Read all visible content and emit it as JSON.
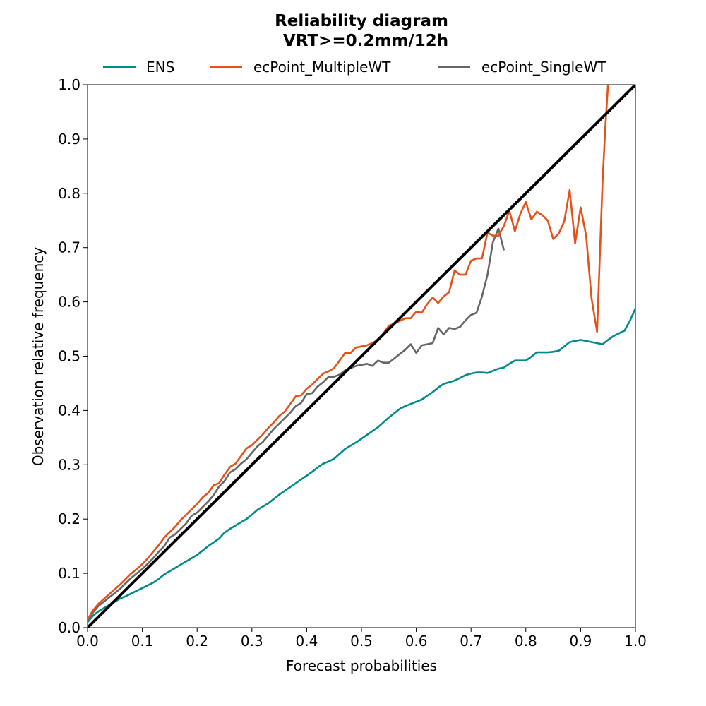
{
  "chart_data": {
    "type": "line",
    "title": "Reliability diagram",
    "subtitle": "VRT>=0.2mm/12h",
    "xlabel": "Forecast probabilities",
    "ylabel": "Observation relative frequency",
    "xlim": [
      0.0,
      1.0
    ],
    "ylim": [
      0.0,
      1.0
    ],
    "xticks": [
      "0.0",
      "0.1",
      "0.2",
      "0.3",
      "0.4",
      "0.5",
      "0.6",
      "0.7",
      "0.8",
      "0.9",
      "1.0"
    ],
    "yticks": [
      "0.0",
      "0.1",
      "0.2",
      "0.3",
      "0.4",
      "0.5",
      "0.6",
      "0.7",
      "0.8",
      "0.9",
      "1.0"
    ],
    "grid": false,
    "legend_position": "top",
    "series": [
      {
        "name": "ENS",
        "color": "#008b8b",
        "x": [
          0.0,
          0.01,
          0.02,
          0.03,
          0.04,
          0.05,
          0.06,
          0.07,
          0.08,
          0.09,
          0.1,
          0.11,
          0.12,
          0.13,
          0.14,
          0.15,
          0.16,
          0.17,
          0.18,
          0.19,
          0.2,
          0.21,
          0.22,
          0.23,
          0.24,
          0.25,
          0.26,
          0.27,
          0.28,
          0.29,
          0.3,
          0.31,
          0.32,
          0.33,
          0.34,
          0.35,
          0.36,
          0.37,
          0.38,
          0.39,
          0.4,
          0.41,
          0.42,
          0.43,
          0.44,
          0.45,
          0.46,
          0.47,
          0.48,
          0.49,
          0.5,
          0.51,
          0.52,
          0.53,
          0.54,
          0.55,
          0.56,
          0.57,
          0.58,
          0.59,
          0.6,
          0.61,
          0.62,
          0.63,
          0.64,
          0.65,
          0.66,
          0.67,
          0.68,
          0.69,
          0.7,
          0.71,
          0.72,
          0.73,
          0.74,
          0.75,
          0.76,
          0.77,
          0.78,
          0.79,
          0.8,
          0.81,
          0.82,
          0.83,
          0.84,
          0.85,
          0.86,
          0.87,
          0.88,
          0.89,
          0.9,
          0.91,
          0.92,
          0.93,
          0.94,
          0.95,
          0.96,
          0.97,
          0.98,
          0.99,
          1.0
        ],
        "y": [
          0.01,
          0.022,
          0.03,
          0.036,
          0.042,
          0.048,
          0.054,
          0.058,
          0.063,
          0.068,
          0.073,
          0.078,
          0.083,
          0.09,
          0.098,
          0.104,
          0.11,
          0.116,
          0.122,
          0.128,
          0.134,
          0.142,
          0.15,
          0.157,
          0.164,
          0.175,
          0.182,
          0.188,
          0.194,
          0.2,
          0.208,
          0.217,
          0.223,
          0.229,
          0.237,
          0.245,
          0.252,
          0.259,
          0.266,
          0.273,
          0.28,
          0.287,
          0.295,
          0.302,
          0.306,
          0.311,
          0.32,
          0.329,
          0.335,
          0.341,
          0.348,
          0.355,
          0.362,
          0.369,
          0.378,
          0.387,
          0.395,
          0.403,
          0.408,
          0.412,
          0.416,
          0.42,
          0.427,
          0.434,
          0.442,
          0.449,
          0.452,
          0.455,
          0.46,
          0.465,
          0.468,
          0.47,
          0.47,
          0.469,
          0.473,
          0.477,
          0.479,
          0.486,
          0.492,
          0.492,
          0.492,
          0.499,
          0.507,
          0.507,
          0.507,
          0.508,
          0.51,
          0.518,
          0.526,
          0.528,
          0.53,
          0.528,
          0.526,
          0.524,
          0.522,
          0.53,
          0.537,
          0.542,
          0.547,
          0.565,
          0.588
        ]
      },
      {
        "name": "ecPoint_MultipleWT",
        "color": "#e8501a",
        "x": [
          0.0,
          0.01,
          0.02,
          0.03,
          0.04,
          0.05,
          0.06,
          0.07,
          0.08,
          0.09,
          0.1,
          0.11,
          0.12,
          0.13,
          0.14,
          0.15,
          0.16,
          0.17,
          0.18,
          0.19,
          0.2,
          0.21,
          0.22,
          0.23,
          0.24,
          0.25,
          0.26,
          0.27,
          0.28,
          0.29,
          0.3,
          0.31,
          0.32,
          0.33,
          0.34,
          0.35,
          0.36,
          0.37,
          0.38,
          0.39,
          0.4,
          0.41,
          0.42,
          0.43,
          0.44,
          0.45,
          0.46,
          0.47,
          0.48,
          0.49,
          0.5,
          0.51,
          0.52,
          0.53,
          0.54,
          0.55,
          0.56,
          0.57,
          0.58,
          0.59,
          0.6,
          0.61,
          0.62,
          0.63,
          0.64,
          0.65,
          0.66,
          0.67,
          0.68,
          0.69,
          0.7,
          0.71,
          0.72,
          0.73,
          0.74,
          0.75,
          0.76,
          0.77,
          0.78,
          0.79,
          0.8,
          0.81,
          0.82,
          0.83,
          0.84,
          0.85,
          0.86,
          0.87,
          0.88,
          0.89,
          0.9,
          0.91,
          0.92,
          0.93,
          0.94,
          0.945,
          0.95
        ],
        "y": [
          0.015,
          0.032,
          0.044,
          0.053,
          0.062,
          0.071,
          0.08,
          0.09,
          0.1,
          0.108,
          0.117,
          0.128,
          0.14,
          0.152,
          0.166,
          0.176,
          0.186,
          0.198,
          0.208,
          0.218,
          0.228,
          0.24,
          0.248,
          0.262,
          0.266,
          0.282,
          0.296,
          0.302,
          0.316,
          0.33,
          0.336,
          0.346,
          0.356,
          0.368,
          0.378,
          0.39,
          0.398,
          0.412,
          0.426,
          0.428,
          0.44,
          0.448,
          0.458,
          0.468,
          0.472,
          0.478,
          0.492,
          0.506,
          0.506,
          0.516,
          0.518,
          0.52,
          0.524,
          0.53,
          0.542,
          0.556,
          0.56,
          0.565,
          0.57,
          0.57,
          0.582,
          0.58,
          0.596,
          0.608,
          0.598,
          0.61,
          0.618,
          0.658,
          0.65,
          0.65,
          0.676,
          0.68,
          0.68,
          0.728,
          0.722,
          0.722,
          0.74,
          0.768,
          0.73,
          0.762,
          0.784,
          0.752,
          0.766,
          0.76,
          0.75,
          0.716,
          0.726,
          0.748,
          0.806,
          0.708,
          0.774,
          0.722,
          0.606,
          0.545,
          0.82,
          0.92,
          1.0
        ]
      },
      {
        "name": "ecPoint_SingleWT",
        "color": "#666666",
        "x": [
          0.0,
          0.01,
          0.02,
          0.03,
          0.04,
          0.05,
          0.06,
          0.07,
          0.08,
          0.09,
          0.1,
          0.11,
          0.12,
          0.13,
          0.14,
          0.15,
          0.16,
          0.17,
          0.18,
          0.19,
          0.2,
          0.21,
          0.22,
          0.23,
          0.24,
          0.25,
          0.26,
          0.27,
          0.28,
          0.29,
          0.3,
          0.31,
          0.32,
          0.33,
          0.34,
          0.35,
          0.36,
          0.37,
          0.38,
          0.39,
          0.4,
          0.41,
          0.42,
          0.43,
          0.44,
          0.45,
          0.46,
          0.47,
          0.48,
          0.49,
          0.5,
          0.51,
          0.52,
          0.53,
          0.54,
          0.55,
          0.56,
          0.57,
          0.58,
          0.59,
          0.6,
          0.61,
          0.62,
          0.63,
          0.64,
          0.65,
          0.66,
          0.67,
          0.68,
          0.69,
          0.7,
          0.71,
          0.72,
          0.73,
          0.74,
          0.75,
          0.76
        ],
        "y": [
          0.012,
          0.028,
          0.04,
          0.048,
          0.056,
          0.064,
          0.072,
          0.082,
          0.092,
          0.1,
          0.108,
          0.118,
          0.128,
          0.14,
          0.15,
          0.166,
          0.172,
          0.182,
          0.192,
          0.206,
          0.212,
          0.222,
          0.232,
          0.244,
          0.26,
          0.27,
          0.286,
          0.292,
          0.302,
          0.31,
          0.322,
          0.334,
          0.342,
          0.354,
          0.366,
          0.376,
          0.386,
          0.396,
          0.408,
          0.414,
          0.43,
          0.432,
          0.444,
          0.452,
          0.462,
          0.462,
          0.466,
          0.474,
          0.478,
          0.482,
          0.484,
          0.486,
          0.482,
          0.492,
          0.488,
          0.488,
          0.496,
          0.504,
          0.512,
          0.522,
          0.506,
          0.52,
          0.522,
          0.524,
          0.552,
          0.54,
          0.552,
          0.55,
          0.554,
          0.566,
          0.576,
          0.58,
          0.61,
          0.65,
          0.71,
          0.735,
          0.695
        ]
      },
      {
        "name": "",
        "color": "#000000",
        "x": [
          0.0,
          1.0
        ],
        "y": [
          0.0,
          1.0
        ]
      }
    ]
  }
}
